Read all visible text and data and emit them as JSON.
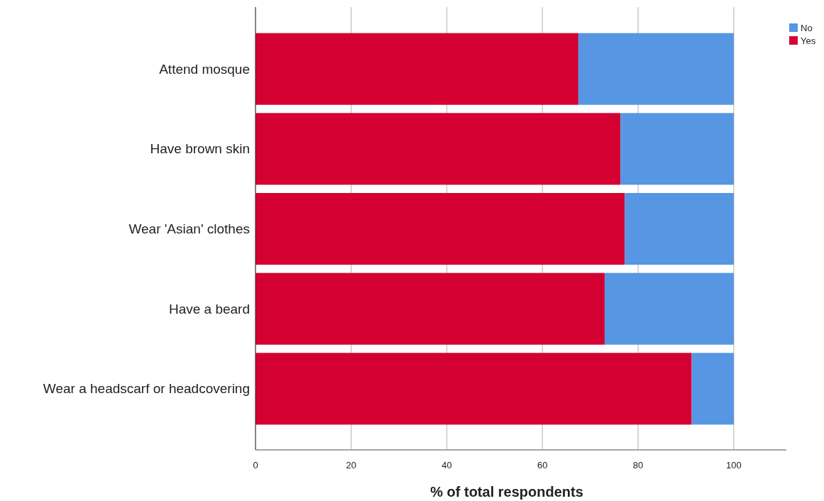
{
  "chart_data": {
    "type": "bar",
    "orientation": "horizontal",
    "stacked": true,
    "xlabel": "% of total respondents",
    "categories": [
      "Attend mosque",
      "Have brown skin",
      "Wear 'Asian' clothes",
      "Have a beard",
      "Wear a headscarf or headcovering"
    ],
    "series": [
      {
        "name": "Yes",
        "color": "#d50032",
        "values": [
          67.5,
          76.3,
          77.2,
          73.0,
          91.2
        ]
      },
      {
        "name": "No",
        "color": "#5696e3",
        "values": [
          32.5,
          23.7,
          22.8,
          27.0,
          8.8
        ]
      }
    ],
    "xlim": [
      0,
      111
    ],
    "xticks": [
      0,
      20,
      40,
      60,
      80,
      100
    ],
    "grid": "x",
    "legend": "top right"
  }
}
